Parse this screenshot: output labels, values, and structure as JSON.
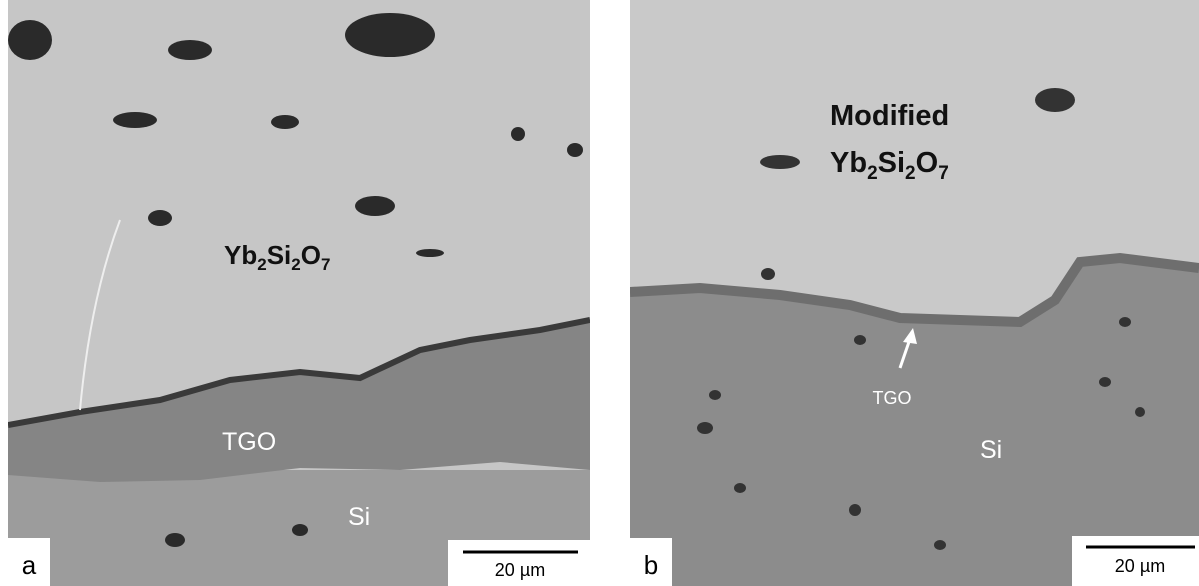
{
  "panels": [
    {
      "letter": "a",
      "coating": [
        "Yb",
        "2",
        "Si",
        "2",
        "O",
        "7"
      ],
      "tgo": "TGO",
      "substrate": "Si",
      "scale_bar": "20 µm"
    },
    {
      "letter": "b",
      "coating_prefix": "Modified",
      "coating": [
        "Yb",
        "2",
        "Si",
        "2",
        "O",
        "7"
      ],
      "tgo": "TGO",
      "substrate": "Si",
      "scale_bar": "20 µm"
    }
  ]
}
